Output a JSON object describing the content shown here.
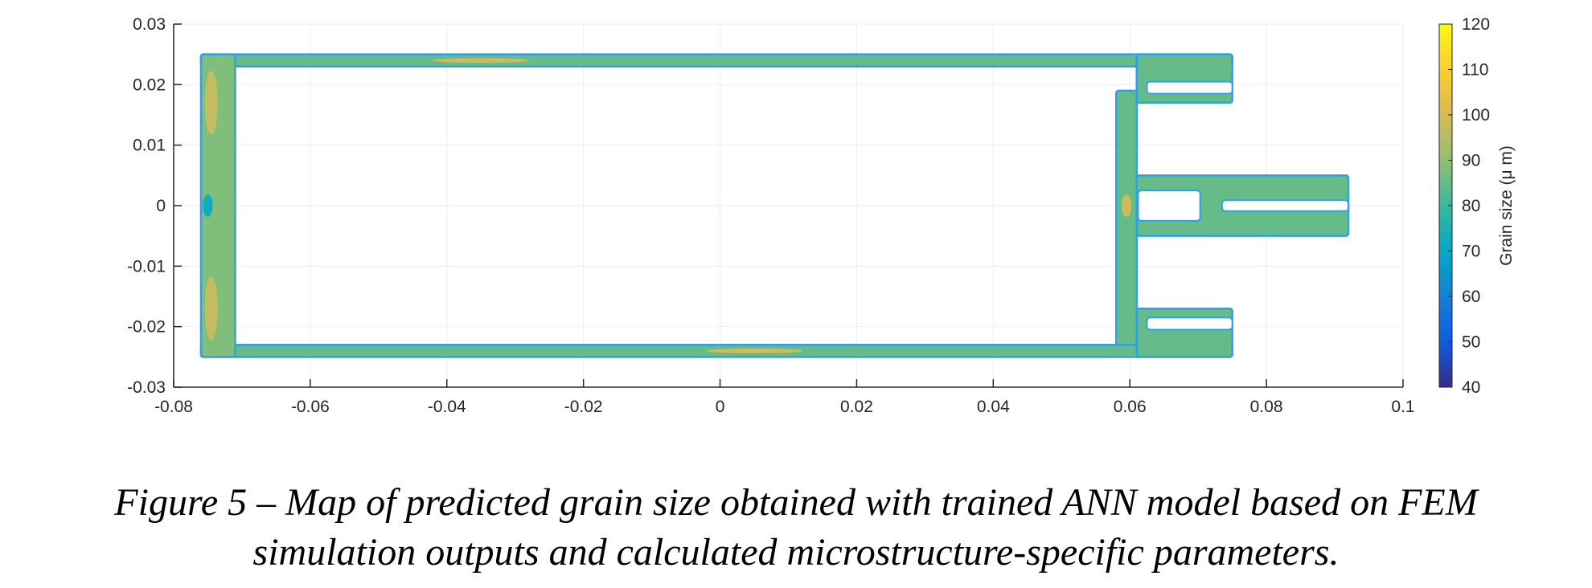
{
  "chart_data": {
    "type": "heatmap",
    "title": "",
    "xlabel": "",
    "ylabel": "",
    "xlim": [
      -0.08,
      0.1
    ],
    "ylim": [
      -0.03,
      0.03
    ],
    "x_ticks": [
      "-0.08",
      "-0.06",
      "-0.04",
      "-0.02",
      "0",
      "0.02",
      "0.04",
      "0.06",
      "0.08",
      "0.1"
    ],
    "y_ticks": [
      "0.03",
      "0.02",
      "0.01",
      "0",
      "-0.01",
      "-0.02",
      "-0.03"
    ],
    "grid": true,
    "colorbar": {
      "label": "Grain size (μ m)",
      "range": [
        40,
        120
      ],
      "ticks": [
        "120",
        "110",
        "100",
        "90",
        "80",
        "70",
        "60",
        "50",
        "40"
      ],
      "colormap": "parula"
    },
    "dominant_value_um": 85,
    "regions": [
      {
        "name": "top frame rail",
        "x": [
          -0.076,
          0.075
        ],
        "y": [
          0.023,
          0.025
        ],
        "grain_size_um": 85
      },
      {
        "name": "bottom frame rail",
        "x": [
          -0.076,
          0.075
        ],
        "y": [
          -0.025,
          -0.023
        ],
        "grain_size_um": 85
      },
      {
        "name": "left end wall",
        "x": [
          -0.076,
          -0.071
        ],
        "y": [
          -0.025,
          0.025
        ],
        "grain_size_um": 88
      },
      {
        "name": "right vertical post",
        "x": [
          0.058,
          0.061
        ],
        "y": [
          -0.023,
          0.019
        ],
        "grain_size_um": 85
      },
      {
        "name": "upper clamp",
        "x": [
          0.061,
          0.075
        ],
        "y": [
          0.017,
          0.025
        ],
        "grain_size_um": 85
      },
      {
        "name": "lower clamp",
        "x": [
          0.061,
          0.075
        ],
        "y": [
          -0.025,
          -0.017
        ],
        "grain_size_um": 85
      },
      {
        "name": "center tab",
        "x": [
          0.061,
          0.092
        ],
        "y": [
          -0.005,
          0.005
        ],
        "grain_size_um": 85
      }
    ],
    "hotspots": [
      {
        "location": "left wall upper",
        "x": -0.0745,
        "y": 0.017,
        "grain_size_um": 98
      },
      {
        "location": "left wall lower",
        "x": -0.0745,
        "y": -0.017,
        "grain_size_um": 98
      },
      {
        "location": "top rail",
        "x": -0.035,
        "y": 0.024,
        "grain_size_um": 100
      },
      {
        "location": "bottom rail",
        "x": 0.005,
        "y": -0.024,
        "grain_size_um": 100
      },
      {
        "location": "post near center",
        "x": 0.0595,
        "y": 0.0,
        "grain_size_um": 100
      },
      {
        "location": "left wall center",
        "x": -0.075,
        "y": 0.0,
        "grain_size_um": 70
      }
    ],
    "colors": {
      "dominant": "#1fbe9a",
      "edge": "#2fa0e8",
      "hot": "#b8c81d",
      "axis": "#262626",
      "grid": "#eeeeee"
    }
  },
  "caption": {
    "line1": "Figure 5 – Map of predicted grain size obtained with trained ANN model based on FEM",
    "line2": "simulation outputs and calculated microstructure-specific parameters."
  }
}
